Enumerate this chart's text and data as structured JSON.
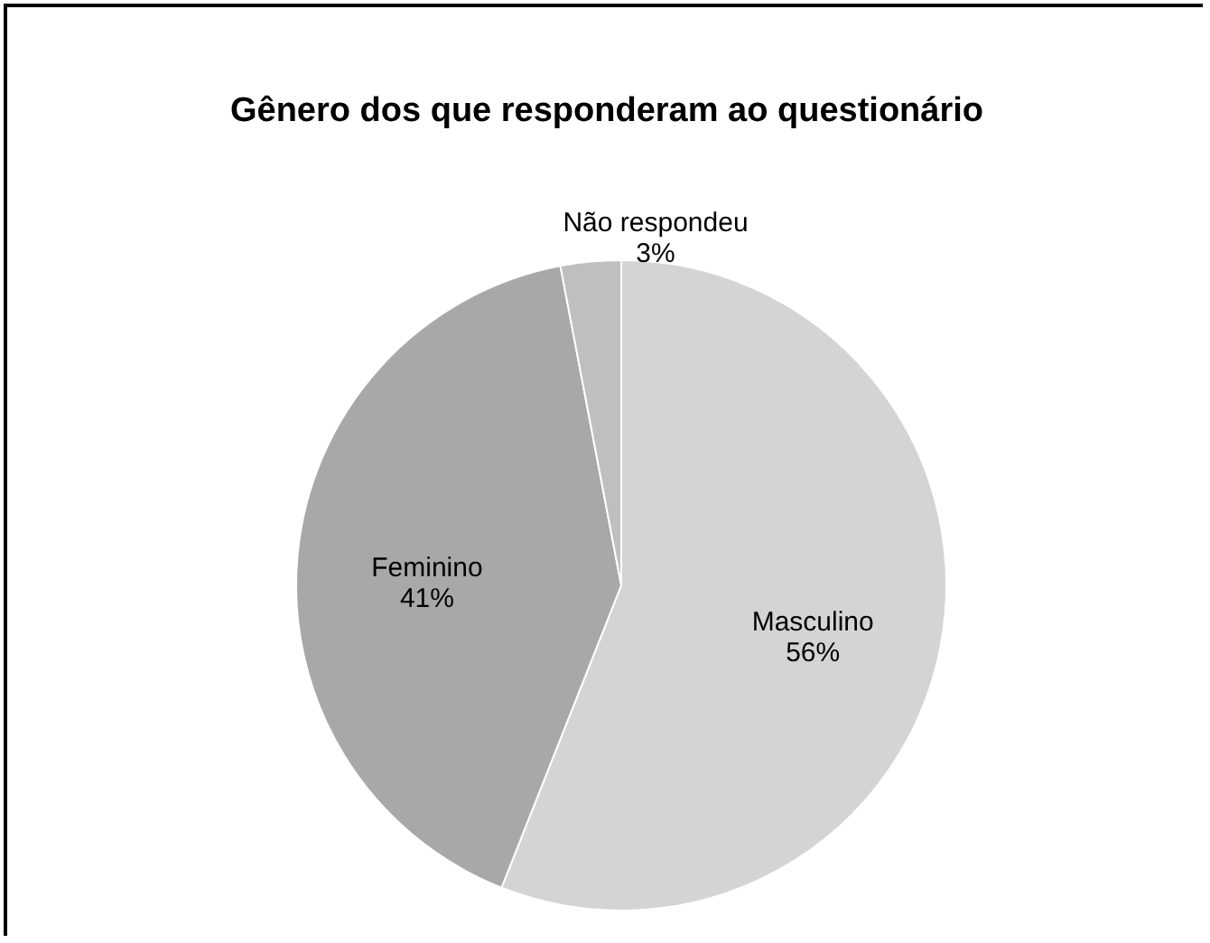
{
  "chart_data": {
    "type": "pie",
    "title": "Gênero dos que responderam ao questionário",
    "categories": [
      "Masculino",
      "Feminino",
      "Não respondeu"
    ],
    "values": [
      56,
      41,
      3
    ],
    "colors": [
      "#d4d4d4",
      "#a8a8a9",
      "#bfbfbf"
    ],
    "value_labels": [
      "56%",
      "41%",
      "3%"
    ]
  }
}
